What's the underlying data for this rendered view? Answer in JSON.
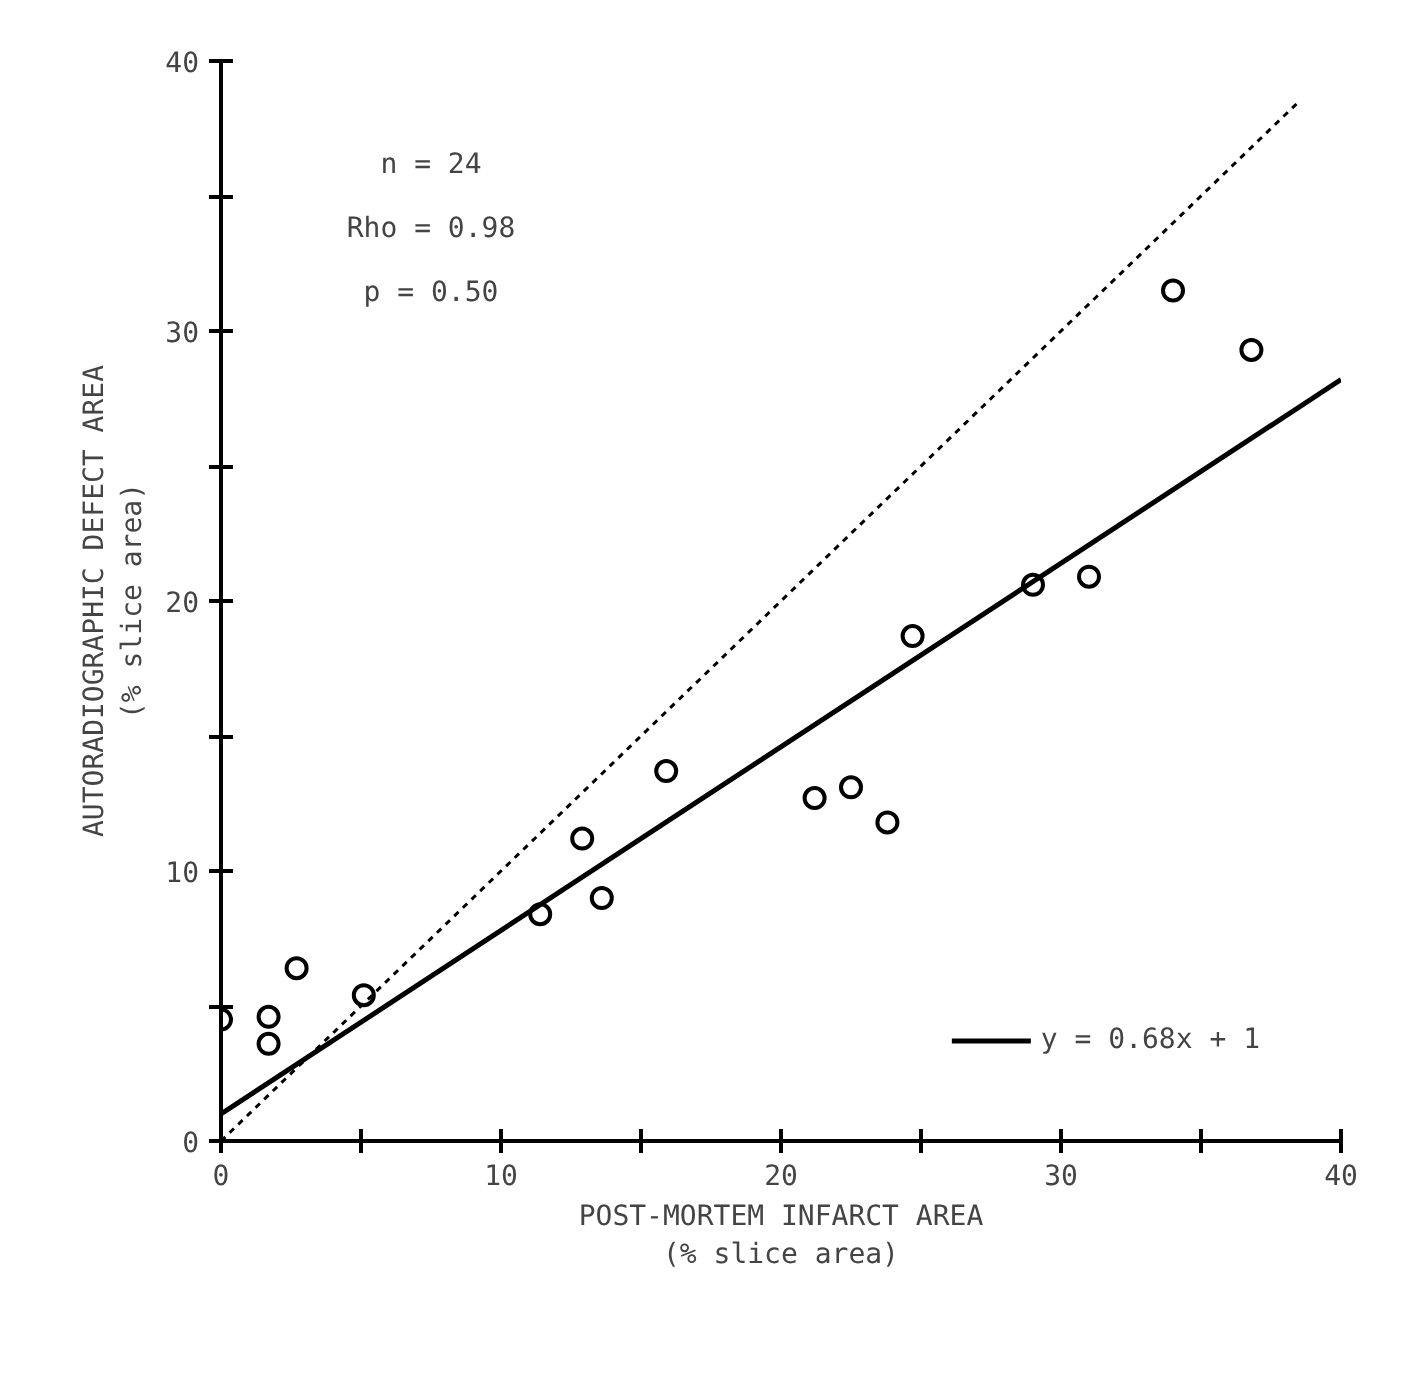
{
  "chart_data": {
    "type": "scatter",
    "xlabel": "POST-MORTEM INFARCT AREA\n(% slice area)",
    "ylabel": "AUTORADIOGRAPHIC DEFECT AREA\n(% slice area)",
    "annotations": [
      "n = 24",
      "Rho = 0.98",
      "p = 0.50"
    ],
    "series": [
      {
        "marker": "circle",
        "color": "#000000",
        "x": [
          0,
          1.7,
          1.7,
          2.7,
          5.1,
          11.4,
          12.9,
          13.6,
          15.9,
          21.2,
          22.5,
          23.8,
          24.7,
          29.0,
          31.0,
          34.0,
          36.8
        ],
        "values": [
          4.5,
          4.6,
          3.6,
          6.4,
          5.4,
          8.4,
          11.2,
          9.0,
          13.7,
          12.7,
          13.1,
          11.8,
          18.7,
          20.6,
          20.9,
          31.5,
          29.3
        ]
      },
      {
        "type": "line",
        "name": "y = 0.68x + 1",
        "color": "#000000",
        "marker": "none",
        "line_style": "solid",
        "x": [
          0,
          40
        ],
        "values": [
          1,
          28.2
        ]
      },
      {
        "type": "line",
        "color": "#000000",
        "line_style": "dotted",
        "x": [
          0,
          38.5
        ],
        "values": [
          0,
          38.5
        ]
      }
    ],
    "grid": false,
    "legend": "bottom right",
    "xlim": [
      0,
      40
    ],
    "ylim": [
      0,
      40
    ],
    "xticks": [
      0,
      {
        "value": 5,
        "label": null
      },
      10,
      {
        "value": 15,
        "label": null
      },
      20,
      {
        "value": 25,
        "label": null
      },
      30,
      {
        "value": 35,
        "label": null
      },
      40
    ],
    "yticks": [
      0,
      {
        "value": 5,
        "label": null
      },
      10,
      {
        "value": 15,
        "label": null
      },
      20,
      {
        "value": 25,
        "label": null
      },
      30,
      {
        "value": 35,
        "label": null
      },
      40
    ]
  }
}
